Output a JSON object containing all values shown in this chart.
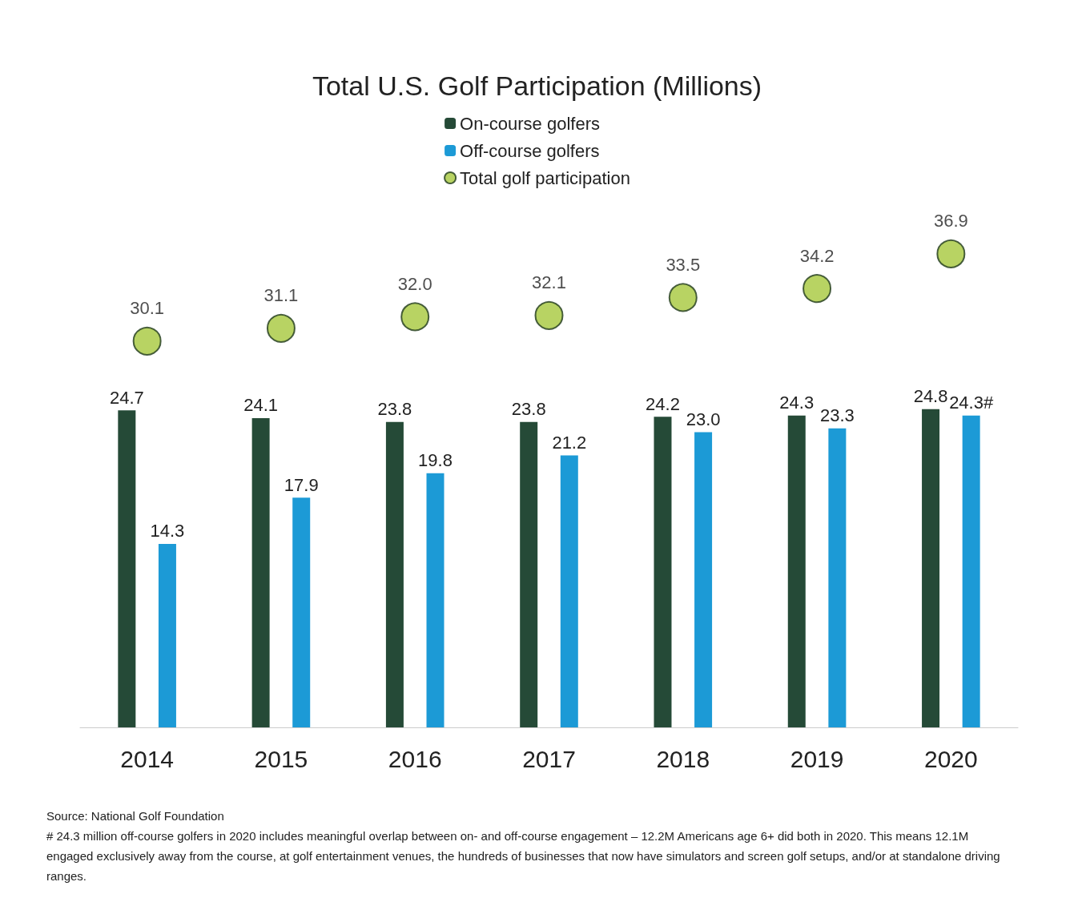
{
  "chart_data": {
    "type": "bar",
    "title": "Total U.S. Golf Participation (Millions)",
    "categories": [
      "2014",
      "2015",
      "2016",
      "2017",
      "2018",
      "2019",
      "2020"
    ],
    "series": [
      {
        "name": "On-course golfers",
        "color": "#254a37",
        "values": [
          24.7,
          24.1,
          23.8,
          23.8,
          24.2,
          24.3,
          24.8
        ]
      },
      {
        "name": "Off-course golfers",
        "color": "#1c9ad6",
        "values": [
          14.3,
          17.9,
          19.8,
          21.2,
          23.0,
          23.3,
          24.3
        ],
        "value_labels": [
          "14.3",
          "17.9",
          "19.8",
          "21.2",
          "23.0",
          "23.3",
          "24.3#"
        ]
      },
      {
        "name": "Total golf participation",
        "type": "scatter",
        "color": "#a6c83c",
        "marker": "circle",
        "values": [
          30.1,
          31.1,
          32.0,
          32.1,
          33.5,
          34.2,
          36.9
        ],
        "value_labels": [
          "30.1",
          "31.1",
          "32.0",
          "32.1",
          "33.5",
          "34.2",
          "36.9"
        ]
      }
    ],
    "data_labels": true,
    "legend": "top",
    "grid": false,
    "annotations": [
      "Source: National Golf Foundation",
      "# 24.3 million off-course golfers in 2020 includes meaningful overlap between on- and off-course engagement – 12.2M Americans age 6+ did both in 2020. This means 12.1M engaged exclusively away from the course, at golf entertainment venues, the hundreds of businesses that now have simulators and screen golf setups, and/or at standalone driving ranges."
    ]
  }
}
